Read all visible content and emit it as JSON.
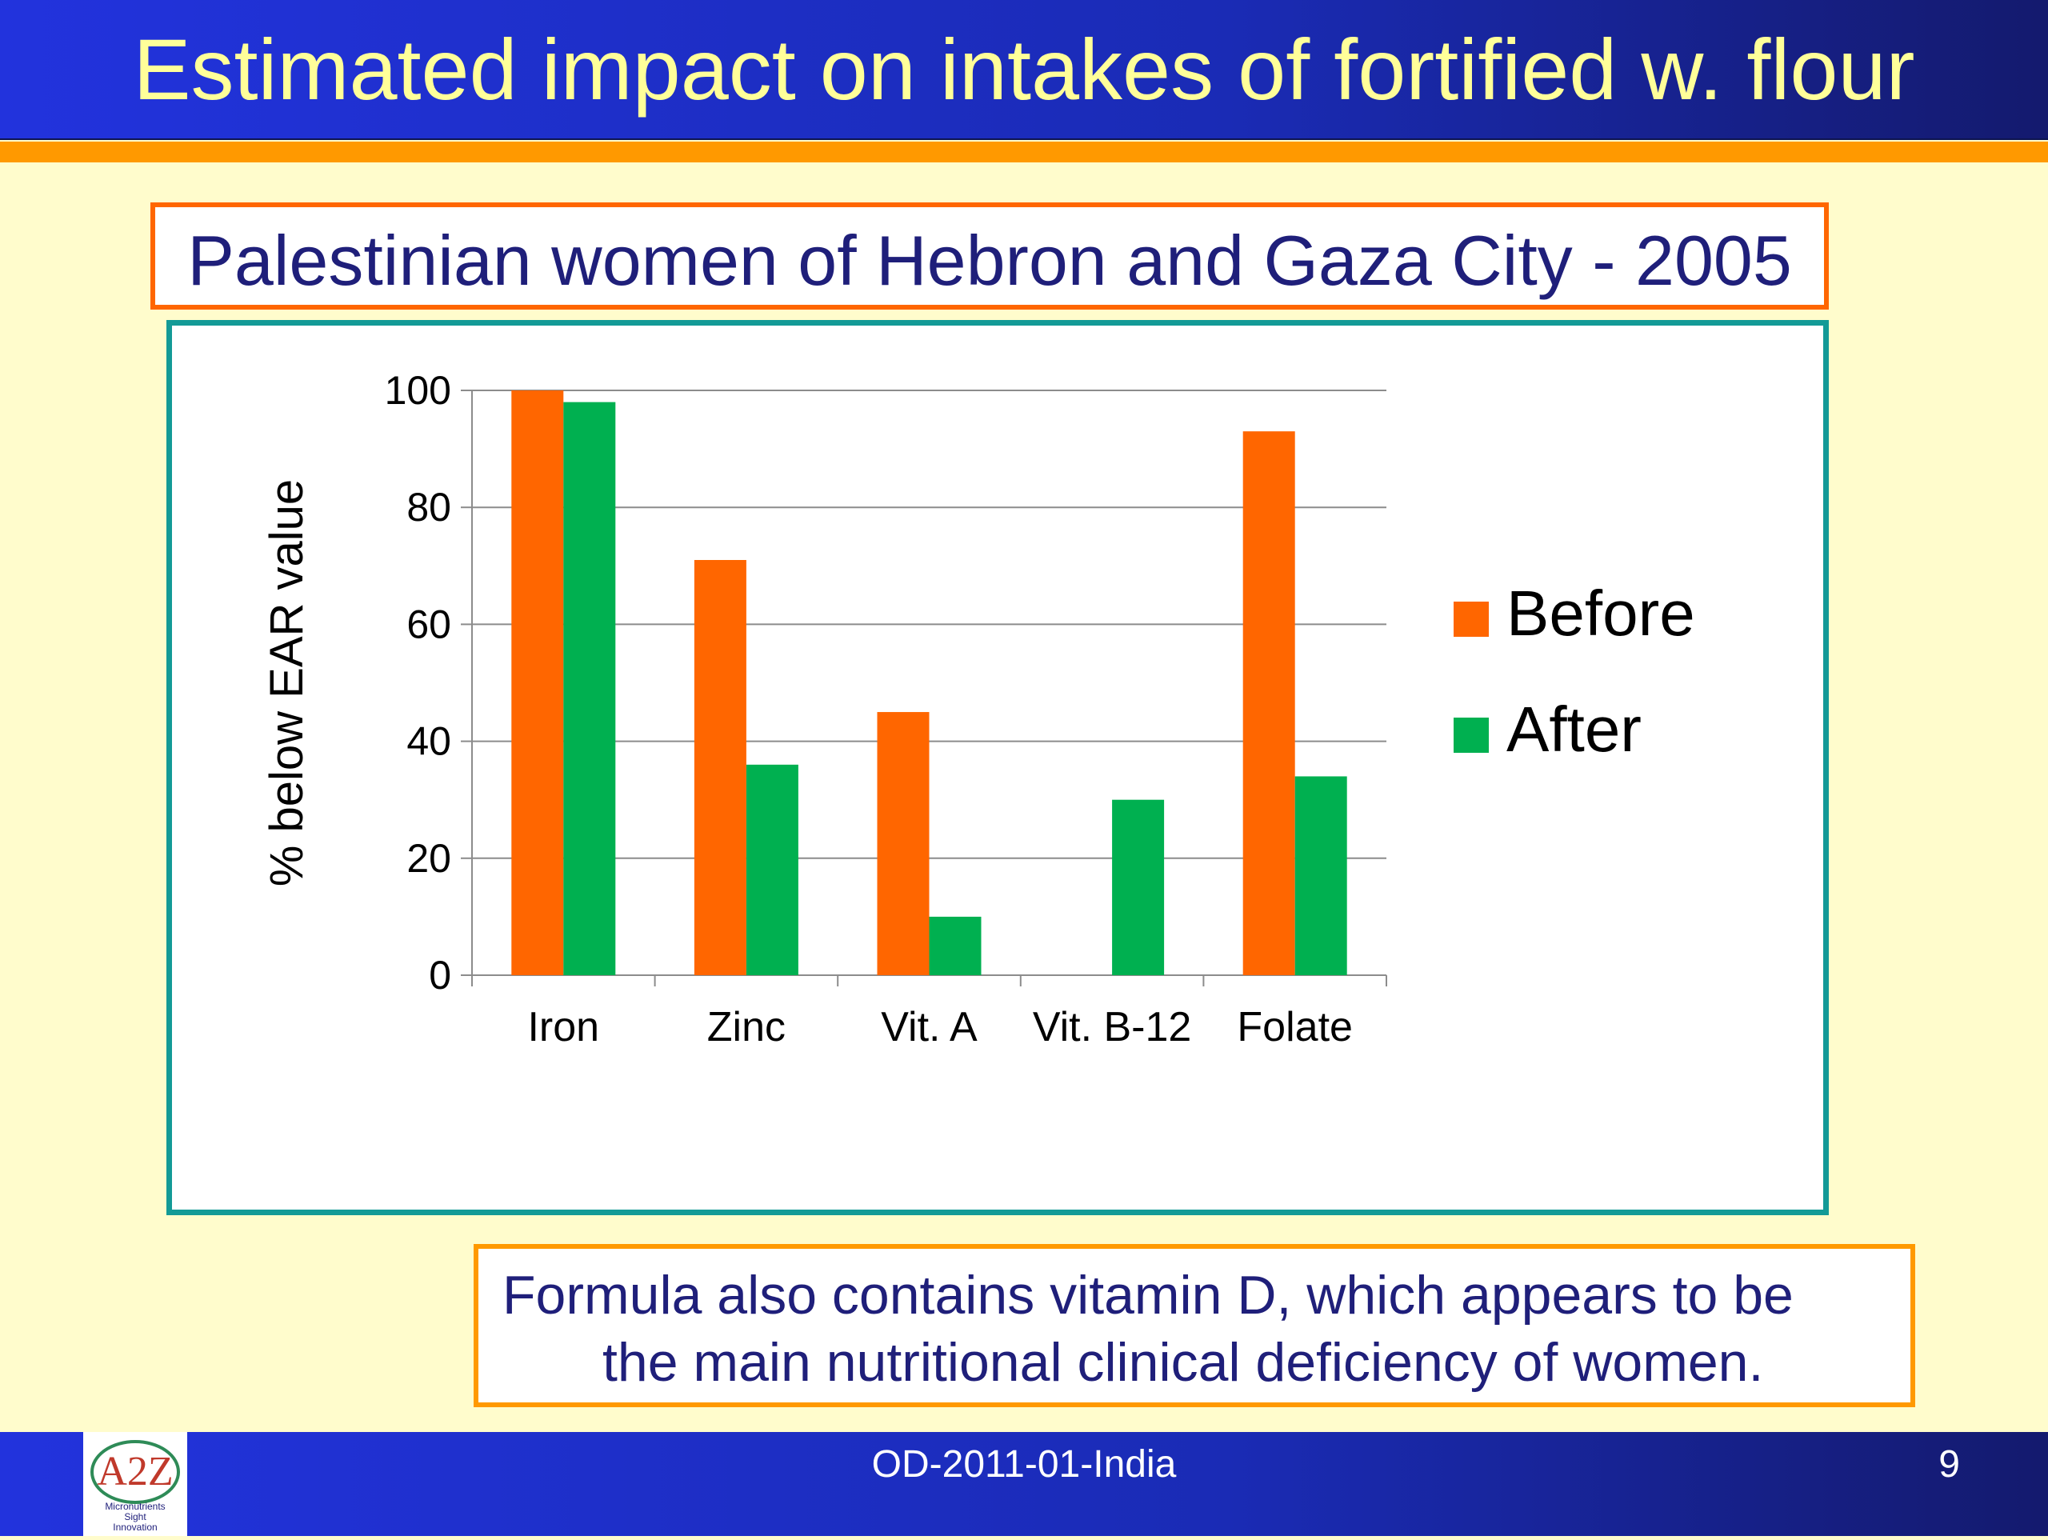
{
  "slide": {
    "title": "Estimated impact on intakes of fortified w. flour",
    "subtitle": "Palestinian women of Hebron and Gaza City -  2005",
    "note_line1": "Formula also contains vitamin D, which appears to be",
    "note_line2": "the main nutritional clinical deficiency of women.",
    "footer_text": "OD-2011-01-India",
    "page_number": "9",
    "logo": {
      "main": "A2Z",
      "line1": "Micronutrients",
      "line2": "Sight",
      "line3": "Innovation"
    }
  },
  "colors": {
    "before": "#ff6600",
    "after": "#00b050",
    "title_text": "#ffff99",
    "title_bar": "#1a2bb5",
    "accent_orange": "#ff9900",
    "chart_border": "#139a96"
  },
  "chart_data": {
    "type": "bar",
    "title": "",
    "xlabel": "",
    "ylabel": "% below EAR value",
    "ylim": [
      0,
      100
    ],
    "yticks": [
      0,
      20,
      40,
      60,
      80,
      100
    ],
    "grid": true,
    "legend_position": "right",
    "categories": [
      "Iron",
      "Zinc",
      "Vit. A",
      "Vit. B-12",
      "Folate"
    ],
    "series": [
      {
        "name": "Before",
        "values": [
          100,
          71,
          45,
          0,
          93
        ]
      },
      {
        "name": "After",
        "values": [
          98,
          36,
          10,
          30,
          34
        ]
      }
    ]
  }
}
